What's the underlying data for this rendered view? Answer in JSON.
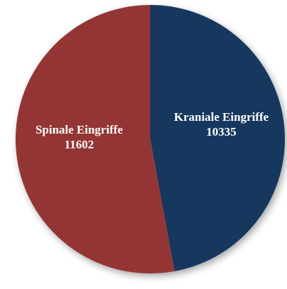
{
  "chart_data": {
    "type": "pie",
    "categories": [
      "Kraniale Eingriffe",
      "Spinale Eingriffe"
    ],
    "values": [
      10335,
      11602
    ],
    "colors": [
      "#17375e",
      "#943634"
    ]
  }
}
